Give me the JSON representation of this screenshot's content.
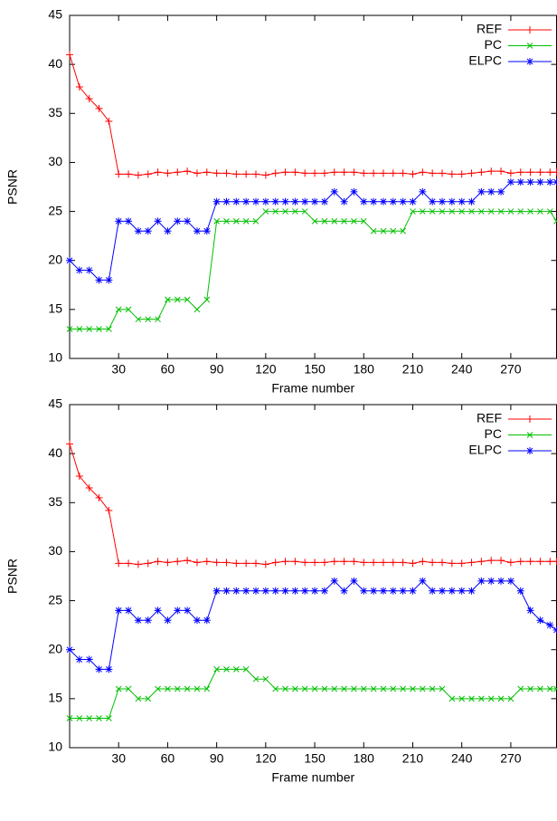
{
  "chart_data": [
    {
      "type": "line",
      "xlabel": "Frame number",
      "ylabel": "PSNR",
      "x": [
        0,
        6,
        12,
        18,
        24,
        30,
        36,
        42,
        48,
        54,
        60,
        66,
        72,
        78,
        84,
        90,
        96,
        102,
        108,
        114,
        120,
        126,
        132,
        138,
        144,
        150,
        156,
        162,
        168,
        174,
        180,
        186,
        192,
        198,
        204,
        210,
        216,
        222,
        228,
        234,
        240,
        246,
        252,
        258,
        264,
        270,
        276,
        282,
        288,
        294,
        298
      ],
      "xlim": [
        0,
        298
      ],
      "ylim": [
        10,
        45
      ],
      "xticks": [
        30,
        60,
        90,
        120,
        150,
        180,
        210,
        240,
        270
      ],
      "yticks": [
        10,
        15,
        20,
        25,
        30,
        35,
        40,
        45
      ],
      "legend": "top-right",
      "series": [
        {
          "name": "REF",
          "color": "#ff0000",
          "marker": "plus",
          "values": [
            41,
            37.7,
            36.5,
            35.5,
            34.2,
            28.8,
            28.8,
            28.7,
            28.8,
            29,
            28.9,
            29,
            29.1,
            28.9,
            29,
            28.9,
            28.9,
            28.8,
            28.8,
            28.8,
            28.7,
            28.9,
            29,
            29,
            28.9,
            28.9,
            28.9,
            29,
            29,
            29,
            28.9,
            28.9,
            28.9,
            28.9,
            28.9,
            28.8,
            29,
            28.9,
            28.9,
            28.8,
            28.8,
            28.9,
            29,
            29.1,
            29.1,
            28.9,
            29,
            29,
            29,
            29,
            29
          ]
        },
        {
          "name": "PC",
          "color": "#00c000",
          "marker": "cross",
          "values": [
            13,
            13,
            13,
            13,
            13,
            15,
            15,
            14,
            14,
            14,
            16,
            16,
            16,
            15,
            16,
            24,
            24,
            24,
            24,
            24,
            25,
            25,
            25,
            25,
            25,
            24,
            24,
            24,
            24,
            24,
            24,
            23,
            23,
            23,
            23,
            25,
            25,
            25,
            25,
            25,
            25,
            25,
            25,
            25,
            25,
            25,
            25,
            25,
            25,
            25,
            24
          ]
        },
        {
          "name": "ELPC",
          "color": "#0000ff",
          "marker": "star",
          "values": [
            20,
            19,
            19,
            18,
            18,
            24,
            24,
            23,
            23,
            24,
            23,
            24,
            24,
            23,
            23,
            26,
            26,
            26,
            26,
            26,
            26,
            26,
            26,
            26,
            26,
            26,
            26,
            27,
            26,
            27,
            26,
            26,
            26,
            26,
            26,
            26,
            27,
            26,
            26,
            26,
            26,
            26,
            27,
            27,
            27,
            28,
            28,
            28,
            28,
            28,
            28
          ]
        }
      ]
    },
    {
      "type": "line",
      "xlabel": "Frame number",
      "ylabel": "PSNR",
      "x": [
        0,
        6,
        12,
        18,
        24,
        30,
        36,
        42,
        48,
        54,
        60,
        66,
        72,
        78,
        84,
        90,
        96,
        102,
        108,
        114,
        120,
        126,
        132,
        138,
        144,
        150,
        156,
        162,
        168,
        174,
        180,
        186,
        192,
        198,
        204,
        210,
        216,
        222,
        228,
        234,
        240,
        246,
        252,
        258,
        264,
        270,
        276,
        282,
        288,
        294,
        298
      ],
      "xlim": [
        0,
        298
      ],
      "ylim": [
        10,
        45
      ],
      "xticks": [
        30,
        60,
        90,
        120,
        150,
        180,
        210,
        240,
        270
      ],
      "yticks": [
        10,
        15,
        20,
        25,
        30,
        35,
        40,
        45
      ],
      "legend": "top-right",
      "series": [
        {
          "name": "REF",
          "color": "#ff0000",
          "marker": "plus",
          "values": [
            41,
            37.7,
            36.5,
            35.5,
            34.2,
            28.8,
            28.8,
            28.7,
            28.8,
            29,
            28.9,
            29,
            29.1,
            28.9,
            29,
            28.9,
            28.9,
            28.8,
            28.8,
            28.8,
            28.7,
            28.9,
            29,
            29,
            28.9,
            28.9,
            28.9,
            29,
            29,
            29,
            28.9,
            28.9,
            28.9,
            28.9,
            28.9,
            28.8,
            29,
            28.9,
            28.9,
            28.8,
            28.8,
            28.9,
            29,
            29.1,
            29.1,
            28.9,
            29,
            29,
            29,
            29,
            29
          ]
        },
        {
          "name": "PC",
          "color": "#00c000",
          "marker": "cross",
          "values": [
            13,
            13,
            13,
            13,
            13,
            16,
            16,
            15,
            15,
            16,
            16,
            16,
            16,
            16,
            16,
            18,
            18,
            18,
            18,
            17,
            17,
            16,
            16,
            16,
            16,
            16,
            16,
            16,
            16,
            16,
            16,
            16,
            16,
            16,
            16,
            16,
            16,
            16,
            16,
            15,
            15,
            15,
            15,
            15,
            15,
            15,
            16,
            16,
            16,
            16,
            16
          ]
        },
        {
          "name": "ELPC",
          "color": "#0000ff",
          "marker": "star",
          "values": [
            20,
            19,
            19,
            18,
            18,
            24,
            24,
            23,
            23,
            24,
            23,
            24,
            24,
            23,
            23,
            26,
            26,
            26,
            26,
            26,
            26,
            26,
            26,
            26,
            26,
            26,
            26,
            27,
            26,
            27,
            26,
            26,
            26,
            26,
            26,
            26,
            27,
            26,
            26,
            26,
            26,
            26,
            27,
            27,
            27,
            27,
            26,
            24,
            23,
            22.5,
            22
          ]
        }
      ]
    }
  ]
}
